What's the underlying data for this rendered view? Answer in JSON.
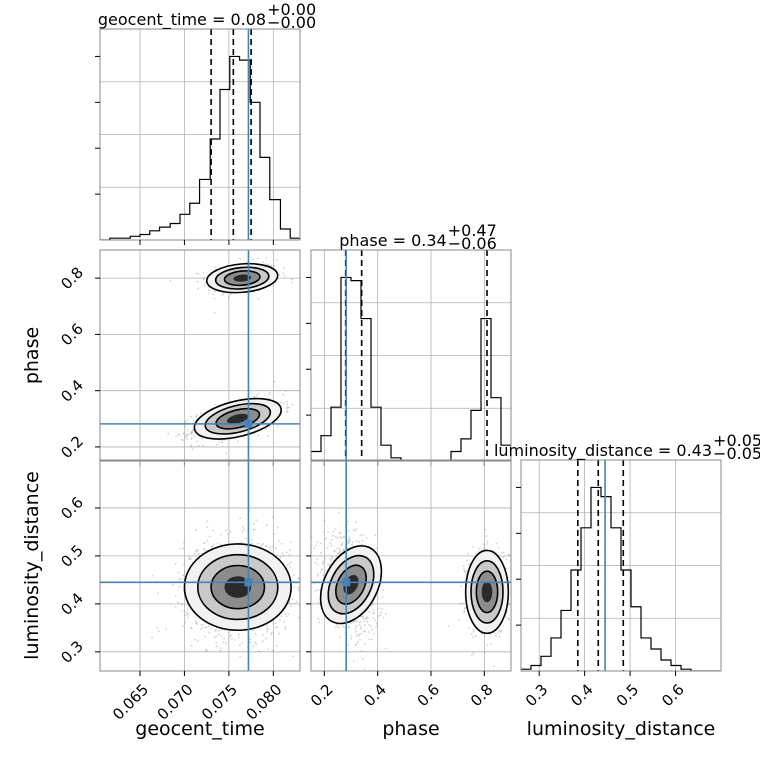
{
  "chart_data": {
    "type": "corner",
    "parameters": [
      "geocent_time",
      "phase",
      "luminosity_distance"
    ],
    "truths": {
      "geocent_time": 0.0772,
      "phase": 0.282,
      "luminosity_distance": 0.445
    },
    "quantiles": {
      "geocent_time": [
        0.073,
        0.0755,
        0.0775
      ],
      "phase": [
        0.28,
        0.34,
        0.81
      ],
      "luminosity_distance": [
        0.385,
        0.43,
        0.485
      ]
    },
    "titles": [
      {
        "param": "geocent_time",
        "label": "geocent_time",
        "value": "0.08",
        "plus": "+0.00",
        "minus": "−0.00"
      },
      {
        "param": "phase",
        "label": "phase",
        "value": "0.34",
        "plus": "+0.47",
        "minus": "−0.06"
      },
      {
        "param": "luminosity_distance",
        "label": "luminosity_distance",
        "value": "0.43",
        "plus": "+0.05",
        "minus": "−0.05"
      }
    ],
    "axes": {
      "geocent_time": {
        "range": [
          0.0605,
          0.083
        ],
        "ticks": [
          0.065,
          0.07,
          0.075,
          0.08
        ],
        "tick_labels": [
          "0.065",
          "0.070",
          "0.075",
          "0.080"
        ],
        "xlabel": "geocent_time"
      },
      "phase": {
        "range": [
          0.15,
          0.9
        ],
        "ticks": [
          0.2,
          0.4,
          0.6,
          0.8
        ],
        "tick_labels": [
          "0.2",
          "0.4",
          "0.6",
          "0.8"
        ],
        "xlabel": "phase",
        "ylabel": "phase"
      },
      "luminosity_distance": {
        "range": [
          0.26,
          0.7
        ],
        "ticks": [
          0.3,
          0.4,
          0.5,
          0.6
        ],
        "tick_labels": [
          "0.3",
          "0.4",
          "0.5",
          "0.6"
        ],
        "xlabel": "luminosity_distance",
        "ylabel": "luminosity_distance"
      }
    },
    "histograms": {
      "geocent_time": {
        "bin_edges": [
          0.0605,
          0.0616,
          0.0627,
          0.0639,
          0.065,
          0.0661,
          0.0672,
          0.0684,
          0.0695,
          0.0706,
          0.0717,
          0.0729,
          0.074,
          0.0751,
          0.0762,
          0.0774,
          0.0785,
          0.0796,
          0.0808,
          0.0819,
          0.083
        ],
        "counts": [
          0,
          1,
          1,
          2,
          3,
          5,
          7,
          9,
          14,
          20,
          33,
          55,
          82,
          100,
          98,
          75,
          45,
          22,
          6,
          1
        ]
      },
      "phase": {
        "bin_edges": [
          0.15,
          0.1875,
          0.225,
          0.2625,
          0.3,
          0.3375,
          0.375,
          0.4125,
          0.45,
          0.4875,
          0.525,
          0.5625,
          0.6,
          0.6375,
          0.675,
          0.7125,
          0.75,
          0.7875,
          0.825,
          0.8625,
          0.9
        ],
        "counts": [
          3,
          8,
          17,
          58,
          57,
          45,
          17,
          5,
          1,
          0,
          0,
          0,
          0,
          0,
          3,
          7,
          16,
          45,
          20,
          5
        ]
      },
      "luminosity_distance": {
        "bin_edges": [
          0.26,
          0.282,
          0.304,
          0.326,
          0.348,
          0.37,
          0.392,
          0.414,
          0.436,
          0.458,
          0.48,
          0.502,
          0.524,
          0.546,
          0.568,
          0.59,
          0.612,
          0.634,
          0.656,
          0.678,
          0.7
        ],
        "counts": [
          1,
          3,
          8,
          18,
          33,
          55,
          78,
          100,
          95,
          78,
          55,
          35,
          18,
          12,
          6,
          3,
          1,
          0,
          0,
          0
        ]
      }
    },
    "grid": true,
    "colors": {
      "truth": "#4682b4",
      "hist": "#000000",
      "quantile": "#000000"
    }
  }
}
